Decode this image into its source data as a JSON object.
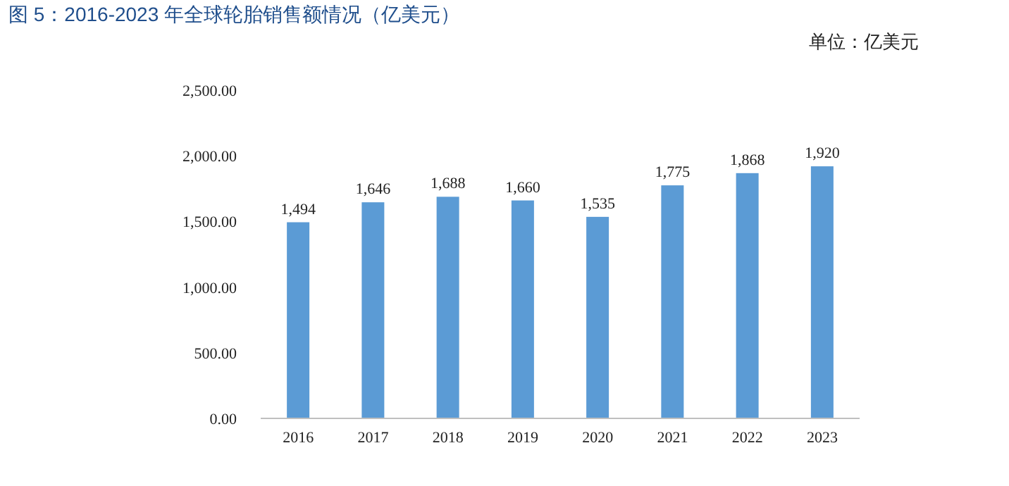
{
  "chart_data": {
    "type": "bar",
    "title": "图 5：2016-2023 年全球轮胎销售额情况（亿美元）",
    "subtitle": "单位：亿美元",
    "categories": [
      "2016",
      "2017",
      "2018",
      "2019",
      "2020",
      "2021",
      "2022",
      "2023"
    ],
    "values": [
      1494,
      1646,
      1688,
      1660,
      1535,
      1775,
      1868,
      1920
    ],
    "value_labels": [
      "1,494",
      "1,646",
      "1,688",
      "1,660",
      "1,535",
      "1,775",
      "1,868",
      "1,920"
    ],
    "color": "#5b9bd5",
    "ylim": [
      0,
      2500
    ],
    "yticks": [
      {
        "value": 0,
        "label": "0.00"
      },
      {
        "value": 500,
        "label": "500.00"
      },
      {
        "value": 1000,
        "label": "1,000.00"
      },
      {
        "value": 1500,
        "label": "1,500.00"
      },
      {
        "value": 2000,
        "label": "2,000.00"
      },
      {
        "value": 2500,
        "label": "2,500.00"
      }
    ],
    "grid": false
  }
}
